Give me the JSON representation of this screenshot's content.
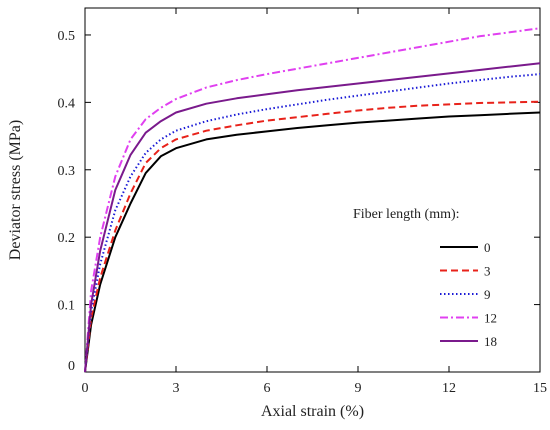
{
  "chart_data": {
    "type": "line",
    "title": "",
    "xlabel": "Axial strain (%)",
    "ylabel": "Deviator stress (MPa)",
    "xlim": [
      0,
      15
    ],
    "ylim": [
      0,
      0.54
    ],
    "xticks": [
      0,
      3,
      6,
      9,
      12,
      15
    ],
    "yticks": [
      0,
      0.1,
      0.2,
      0.3,
      0.4,
      0.5
    ],
    "xtick_labels": [
      "0",
      "3",
      "6",
      "9",
      "12",
      "15"
    ],
    "ytick_labels": [
      "0",
      "0.1",
      "0.2",
      "0.3",
      "0.4",
      "0.5"
    ],
    "grid": false,
    "legend": {
      "title": "Fiber length (mm):",
      "position": "right"
    },
    "series": [
      {
        "name": "0",
        "color": "#000000",
        "dash": "solid",
        "x": [
          0,
          0.2,
          0.5,
          1.0,
          1.5,
          2.0,
          2.5,
          3.0,
          4.0,
          5.0,
          6.0,
          7.0,
          8.0,
          9.0,
          10.0,
          11.0,
          12.0,
          13.0,
          14.0,
          15.0
        ],
        "y": [
          0,
          0.07,
          0.13,
          0.2,
          0.25,
          0.295,
          0.32,
          0.332,
          0.345,
          0.352,
          0.357,
          0.362,
          0.366,
          0.37,
          0.373,
          0.376,
          0.379,
          0.381,
          0.383,
          0.385
        ]
      },
      {
        "name": "3",
        "color": "#e8221a",
        "dash": "dashed",
        "x": [
          0,
          0.2,
          0.5,
          1.0,
          1.5,
          2.0,
          2.5,
          3.0,
          4.0,
          5.0,
          6.0,
          7.0,
          8.0,
          9.0,
          10.0,
          11.0,
          12.0,
          13.0,
          14.0,
          15.0
        ],
        "y": [
          0,
          0.08,
          0.14,
          0.21,
          0.265,
          0.31,
          0.332,
          0.345,
          0.358,
          0.366,
          0.373,
          0.378,
          0.383,
          0.388,
          0.392,
          0.395,
          0.397,
          0.399,
          0.4,
          0.401
        ]
      },
      {
        "name": "9",
        "color": "#1a1ad6",
        "dash": "dotted",
        "x": [
          0,
          0.2,
          0.5,
          1.0,
          1.5,
          2.0,
          2.5,
          3.0,
          4.0,
          5.0,
          6.0,
          7.0,
          8.0,
          9.0,
          10.0,
          11.0,
          12.0,
          13.0,
          14.0,
          15.0
        ],
        "y": [
          0,
          0.09,
          0.16,
          0.24,
          0.29,
          0.325,
          0.345,
          0.358,
          0.372,
          0.382,
          0.39,
          0.397,
          0.404,
          0.41,
          0.416,
          0.422,
          0.428,
          0.433,
          0.438,
          0.442
        ]
      },
      {
        "name": "12",
        "color": "#e040f0",
        "dash": "dashdot",
        "x": [
          0,
          0.2,
          0.5,
          1.0,
          1.5,
          2.0,
          2.5,
          3.0,
          4.0,
          5.0,
          6.0,
          7.0,
          8.0,
          9.0,
          10.0,
          11.0,
          12.0,
          13.0,
          14.0,
          15.0
        ],
        "y": [
          0,
          0.12,
          0.2,
          0.29,
          0.345,
          0.375,
          0.392,
          0.405,
          0.422,
          0.433,
          0.442,
          0.45,
          0.458,
          0.466,
          0.474,
          0.482,
          0.49,
          0.498,
          0.504,
          0.51
        ]
      },
      {
        "name": "18",
        "color": "#7a1a8c",
        "dash": "solid",
        "x": [
          0,
          0.2,
          0.5,
          1.0,
          1.5,
          2.0,
          2.5,
          3.0,
          4.0,
          5.0,
          6.0,
          7.0,
          8.0,
          9.0,
          10.0,
          11.0,
          12.0,
          13.0,
          14.0,
          15.0
        ],
        "y": [
          0,
          0.1,
          0.18,
          0.27,
          0.322,
          0.355,
          0.372,
          0.385,
          0.398,
          0.406,
          0.412,
          0.418,
          0.423,
          0.428,
          0.433,
          0.438,
          0.443,
          0.448,
          0.453,
          0.458
        ]
      }
    ]
  }
}
